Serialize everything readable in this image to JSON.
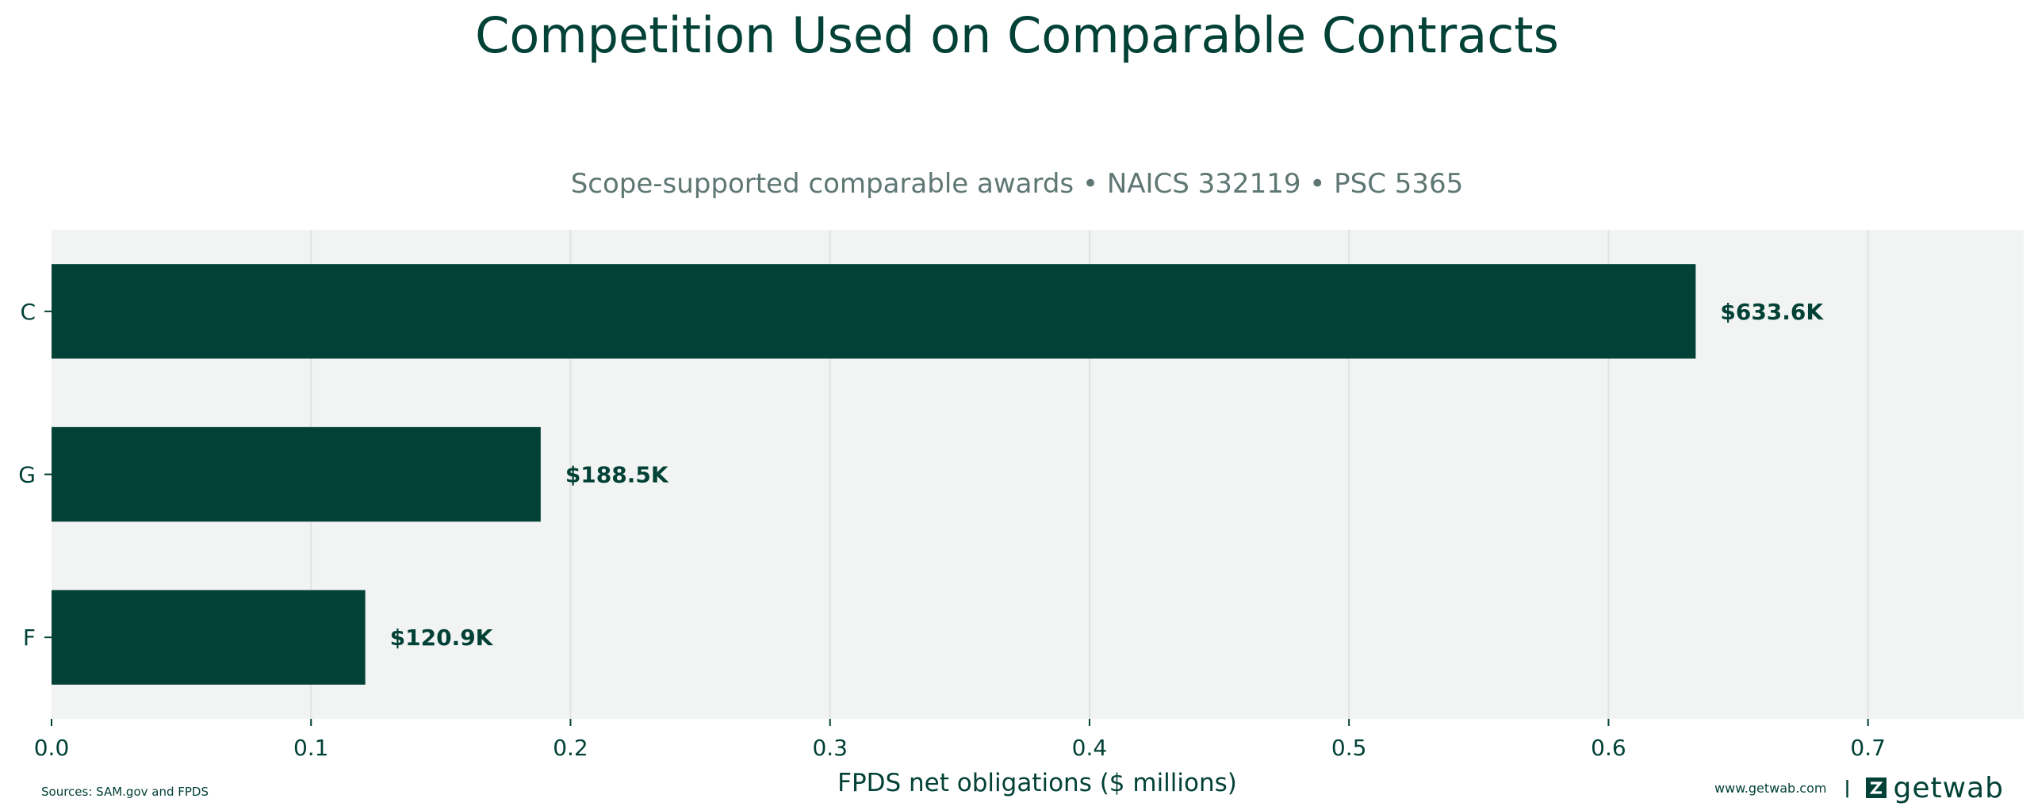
{
  "chart_data": {
    "type": "bar",
    "orientation": "horizontal",
    "title": "Competition Used on Comparable Contracts",
    "subtitle": "Scope-supported comparable awards • NAICS 332119 • PSC 5365",
    "xlabel": "FPDS net obligations ($ millions)",
    "ylabel": "",
    "categories": [
      "C",
      "G",
      "F"
    ],
    "values": [
      0.6336,
      0.1885,
      0.1209
    ],
    "value_labels": [
      "$633.6K",
      "$188.5K",
      "$120.9K"
    ],
    "xlim": [
      0,
      0.76
    ],
    "xticks": [
      0.0,
      0.1,
      0.2,
      0.3,
      0.4,
      0.5,
      0.6,
      0.7
    ],
    "xtick_labels": [
      "0.0",
      "0.1",
      "0.2",
      "0.3",
      "0.4",
      "0.5",
      "0.6",
      "0.7"
    ],
    "grid": "vertical",
    "bar_color": "#024136",
    "plot_background": "#f2f4f3"
  },
  "footer": {
    "sources": "Sources: SAM.gov and FPDS",
    "website": "www.getwab.com",
    "separator": "|",
    "logo_text": "getwab",
    "logo_icon": "getwab-logo-icon"
  }
}
